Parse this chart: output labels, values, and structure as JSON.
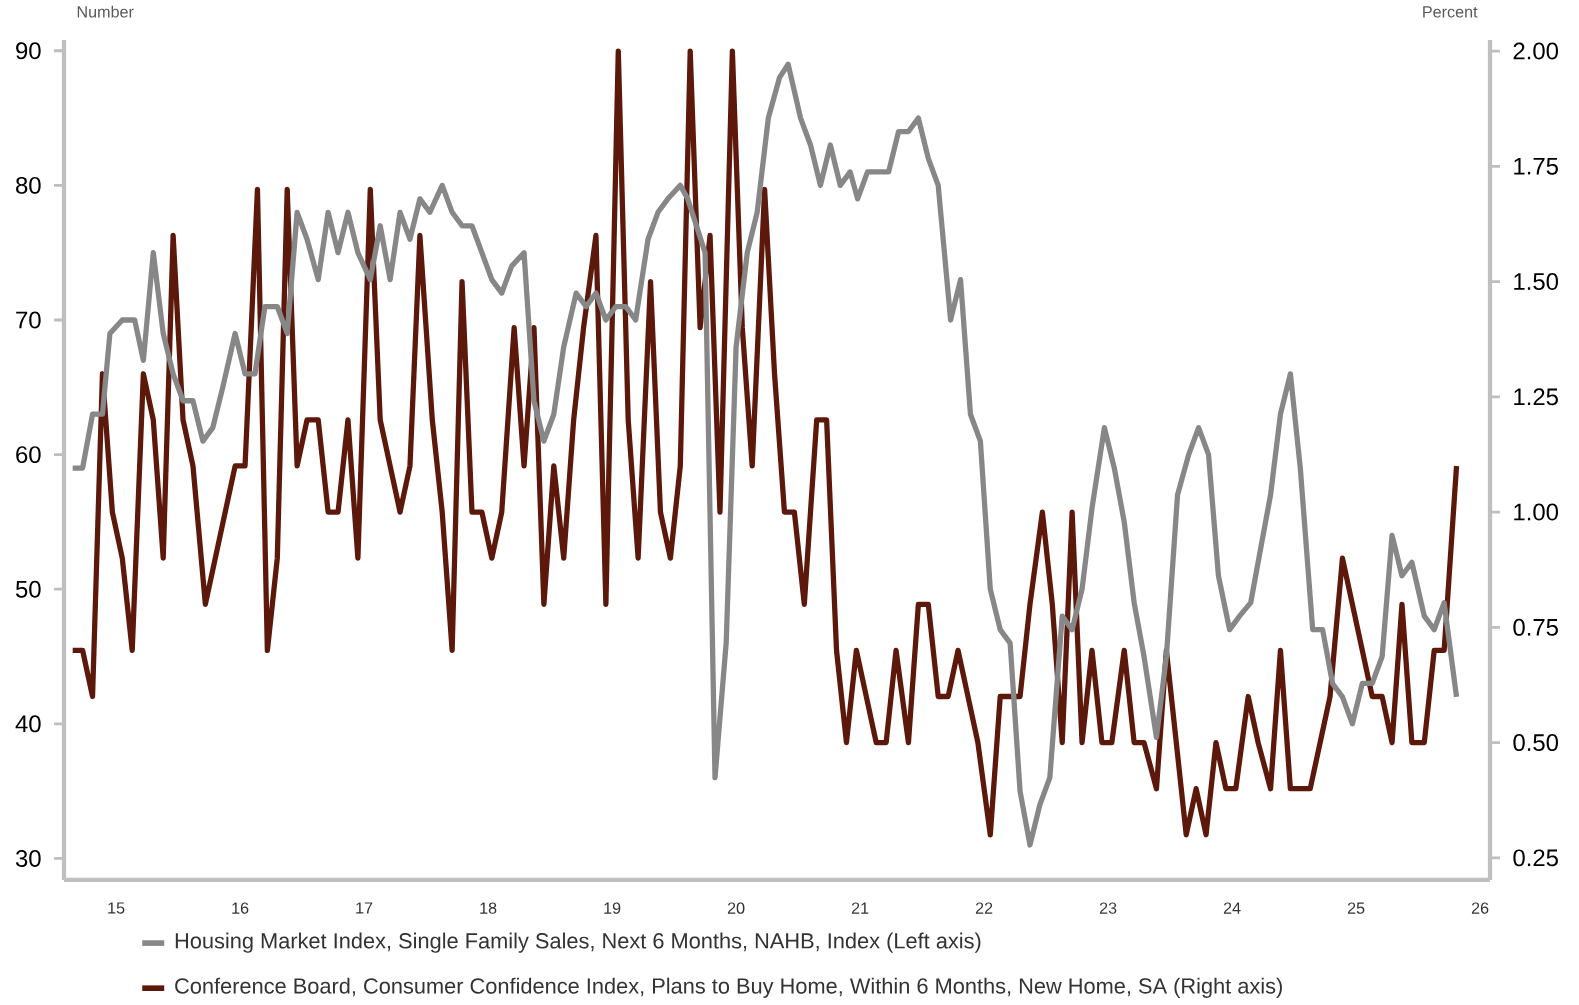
{
  "chart_data": {
    "type": "line",
    "ylabel": "Number",
    "y2label": "Percent",
    "xlim": [
      14.58,
      26.08
    ],
    "xticks": [
      15,
      16,
      17,
      18,
      19,
      20,
      21,
      22,
      23,
      24,
      25,
      26
    ],
    "ylim": [
      28.4,
      90.8
    ],
    "yticks": [
      30,
      40,
      50,
      60,
      70,
      80,
      90
    ],
    "y2lim": [
      0.202,
      2.024
    ],
    "y2ticks": [
      {
        "value": 0.25,
        "label": "0.25"
      },
      {
        "value": 0.5,
        "label": "0.50"
      },
      {
        "value": 0.75,
        "label": "0.75"
      },
      {
        "value": 1.0,
        "label": "1.00"
      },
      {
        "value": 1.25,
        "label": "1.25"
      },
      {
        "value": 1.5,
        "label": "1.50"
      },
      {
        "value": 1.75,
        "label": "1.75"
      },
      {
        "value": 2.0,
        "label": "2.00"
      }
    ],
    "legend": "bottom",
    "grid": false,
    "marker": "none",
    "line_style": "solid",
    "series": [
      {
        "name": "Housing Market Index, Single Family Sales, Next 6 Months, NAHB, Index (Left axis)",
        "color": "#878787",
        "x": [
          14.65,
          14.73,
          14.81,
          14.89,
          14.95,
          15.05,
          15.15,
          15.22,
          15.3,
          15.38,
          15.46,
          15.54,
          15.62,
          15.7,
          15.78,
          15.86,
          15.96,
          16.04,
          16.12,
          16.2,
          16.3,
          16.38,
          16.46,
          16.54,
          16.63,
          16.71,
          16.79,
          16.87,
          16.95,
          17.05,
          17.13,
          17.21,
          17.29,
          17.37,
          17.45,
          17.53,
          17.63,
          17.71,
          17.79,
          17.87,
          17.95,
          18.03,
          18.11,
          18.19,
          18.29,
          18.37,
          18.45,
          18.53,
          18.61,
          18.71,
          18.79,
          18.87,
          18.95,
          19.03,
          19.11,
          19.19,
          19.29,
          19.37,
          19.45,
          19.55,
          19.61,
          19.75,
          19.83,
          19.92,
          20.0,
          20.09,
          20.17,
          20.26,
          20.35,
          20.42,
          20.52,
          20.6,
          20.68,
          20.76,
          20.84,
          20.92,
          20.98,
          21.06,
          21.15,
          21.23,
          21.31,
          21.39,
          21.47,
          21.55,
          21.63,
          21.73,
          21.81,
          21.89,
          21.97,
          22.05,
          22.13,
          22.21,
          22.29,
          22.37,
          22.45,
          22.53,
          22.63,
          22.71,
          22.79,
          22.87,
          22.97,
          23.05,
          23.13,
          23.21,
          23.29,
          23.39,
          23.47,
          23.56,
          23.65,
          23.73,
          23.81,
          23.89,
          23.98,
          24.06,
          24.15,
          24.23,
          24.31,
          24.39,
          24.47,
          24.55,
          24.65,
          24.73,
          24.81,
          24.89,
          24.97,
          25.05,
          25.13,
          25.21,
          25.29,
          25.37,
          25.45,
          25.55,
          25.63,
          25.71,
          25.81
        ],
        "values": [
          59,
          59,
          63,
          63,
          69,
          70,
          70,
          67,
          75,
          69,
          66,
          64,
          64,
          61,
          62,
          65,
          69,
          66,
          66,
          71,
          71,
          69,
          78,
          76,
          73,
          78,
          75,
          78,
          75,
          73,
          77,
          73,
          78,
          76,
          79,
          78,
          80,
          78,
          77,
          77,
          75,
          73,
          72,
          74,
          75,
          64,
          61,
          63,
          68,
          72,
          71,
          72,
          70,
          71,
          71,
          70,
          76,
          78,
          79,
          80,
          79,
          75,
          36,
          46,
          68,
          75,
          78,
          85,
          88,
          89,
          85,
          83,
          80,
          83,
          80,
          81,
          79,
          81,
          81,
          81,
          84,
          84,
          85,
          82,
          80,
          70,
          73,
          63,
          61,
          50,
          47,
          46,
          35,
          31,
          34,
          36,
          48,
          47,
          50,
          56,
          62,
          59,
          55,
          49,
          45,
          39,
          45,
          57,
          60,
          62,
          60,
          51,
          47,
          48,
          49,
          53,
          57,
          63,
          66,
          59,
          47,
          47,
          43,
          42,
          40,
          43,
          43,
          45,
          54,
          51,
          52,
          48,
          47,
          49,
          42
        ]
      },
      {
        "name": "Conference Board, Consumer Confidence Index, Plans to Buy Home, Within 6 Months, New Home, SA (Right axis)",
        "color": "#5c190b",
        "axis": "y2",
        "x": [
          14.65,
          14.73,
          14.81,
          14.89,
          14.97,
          15.05,
          15.13,
          15.22,
          15.3,
          15.38,
          15.46,
          15.54,
          15.62,
          15.72,
          15.8,
          15.88,
          15.96,
          16.04,
          16.14,
          16.22,
          16.3,
          16.38,
          16.46,
          16.54,
          16.63,
          16.71,
          16.79,
          16.87,
          16.95,
          17.05,
          17.13,
          17.21,
          17.29,
          17.37,
          17.45,
          17.55,
          17.63,
          17.71,
          17.79,
          17.87,
          17.95,
          18.03,
          18.11,
          18.21,
          18.29,
          18.37,
          18.45,
          18.53,
          18.61,
          18.69,
          18.77,
          18.87,
          18.95,
          19.05,
          19.13,
          19.21,
          19.31,
          19.39,
          19.47,
          19.55,
          19.63,
          19.71,
          19.79,
          19.87,
          19.97,
          20.05,
          20.13,
          20.23,
          20.31,
          20.39,
          20.47,
          20.55,
          20.65,
          20.73,
          20.81,
          20.89,
          20.97,
          21.05,
          21.13,
          21.21,
          21.29,
          21.39,
          21.47,
          21.55,
          21.63,
          21.71,
          21.79,
          21.87,
          21.95,
          22.05,
          22.13,
          22.21,
          22.29,
          22.37,
          22.47,
          22.55,
          22.63,
          22.71,
          22.79,
          22.87,
          22.95,
          23.03,
          23.13,
          23.21,
          23.29,
          23.39,
          23.47,
          23.55,
          23.63,
          23.71,
          23.79,
          23.87,
          23.95,
          24.03,
          24.13,
          24.21,
          24.31,
          24.39,
          24.47,
          24.55,
          24.63,
          24.71,
          24.79,
          24.89,
          24.97,
          25.05,
          25.13,
          25.21,
          25.29,
          25.37,
          25.45,
          25.55,
          25.63,
          25.71,
          25.81
        ],
        "values": [
          0.7,
          0.7,
          0.6,
          1.3,
          1.0,
          0.9,
          0.7,
          1.3,
          1.2,
          0.9,
          1.6,
          1.2,
          1.1,
          0.8,
          0.9,
          1.0,
          1.1,
          1.1,
          1.7,
          0.7,
          0.9,
          1.7,
          1.1,
          1.2,
          1.2,
          1.0,
          1.0,
          1.2,
          0.9,
          1.7,
          1.2,
          1.1,
          1.0,
          1.1,
          1.6,
          1.2,
          1.0,
          0.7,
          1.5,
          1.0,
          1.0,
          0.9,
          1.0,
          1.4,
          1.1,
          1.4,
          0.8,
          1.1,
          0.9,
          1.2,
          1.4,
          1.6,
          0.8,
          2.0,
          1.2,
          0.9,
          1.5,
          1.0,
          0.9,
          1.1,
          2.0,
          1.4,
          1.6,
          1.0,
          2.0,
          1.4,
          1.1,
          1.7,
          1.3,
          1.0,
          1.0,
          0.8,
          1.2,
          1.2,
          0.7,
          0.5,
          0.7,
          0.6,
          0.5,
          0.5,
          0.7,
          0.5,
          0.8,
          0.8,
          0.6,
          0.6,
          0.7,
          0.6,
          0.5,
          0.3,
          0.6,
          0.6,
          0.6,
          0.8,
          1.0,
          0.8,
          0.5,
          1.0,
          0.5,
          0.7,
          0.5,
          0.5,
          0.7,
          0.5,
          0.5,
          0.4,
          0.7,
          0.5,
          0.3,
          0.4,
          0.3,
          0.5,
          0.4,
          0.4,
          0.6,
          0.5,
          0.4,
          0.7,
          0.4,
          0.4,
          0.4,
          0.5,
          0.6,
          0.9,
          0.8,
          0.7,
          0.6,
          0.6,
          0.5,
          0.8,
          0.5,
          0.5,
          0.7,
          0.7,
          1.1
        ]
      }
    ]
  }
}
